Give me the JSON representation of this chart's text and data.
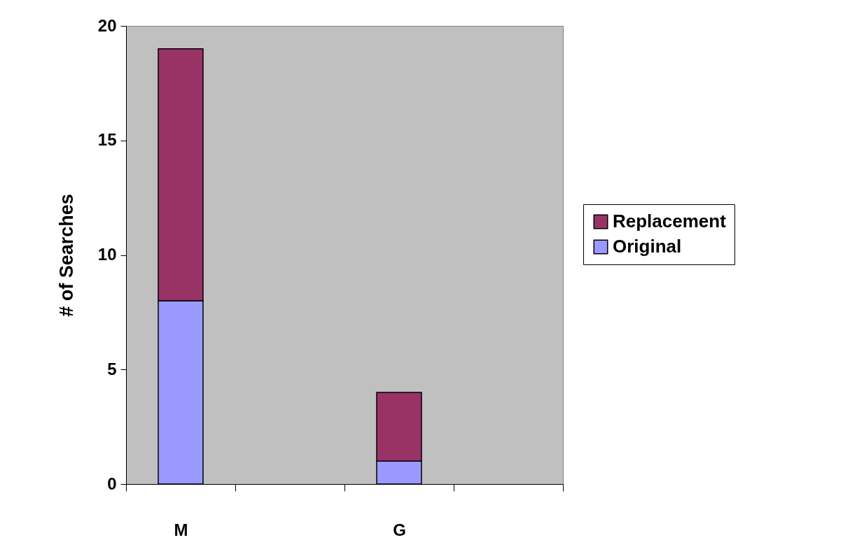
{
  "chart_data": {
    "type": "bar",
    "ylabel": "# of Searches",
    "categories": [
      "M",
      null,
      "G",
      null
    ],
    "stacked": true,
    "series": [
      {
        "name": "Original",
        "color": "#9999ff",
        "values": [
          8,
          null,
          1,
          null
        ]
      },
      {
        "name": "Replacement",
        "color": "#993366",
        "values": [
          11,
          null,
          3,
          null
        ]
      }
    ],
    "ylim": [
      0,
      20
    ],
    "yticks": [
      0,
      5,
      10,
      15,
      20
    ],
    "grid": false,
    "legend": "right"
  }
}
